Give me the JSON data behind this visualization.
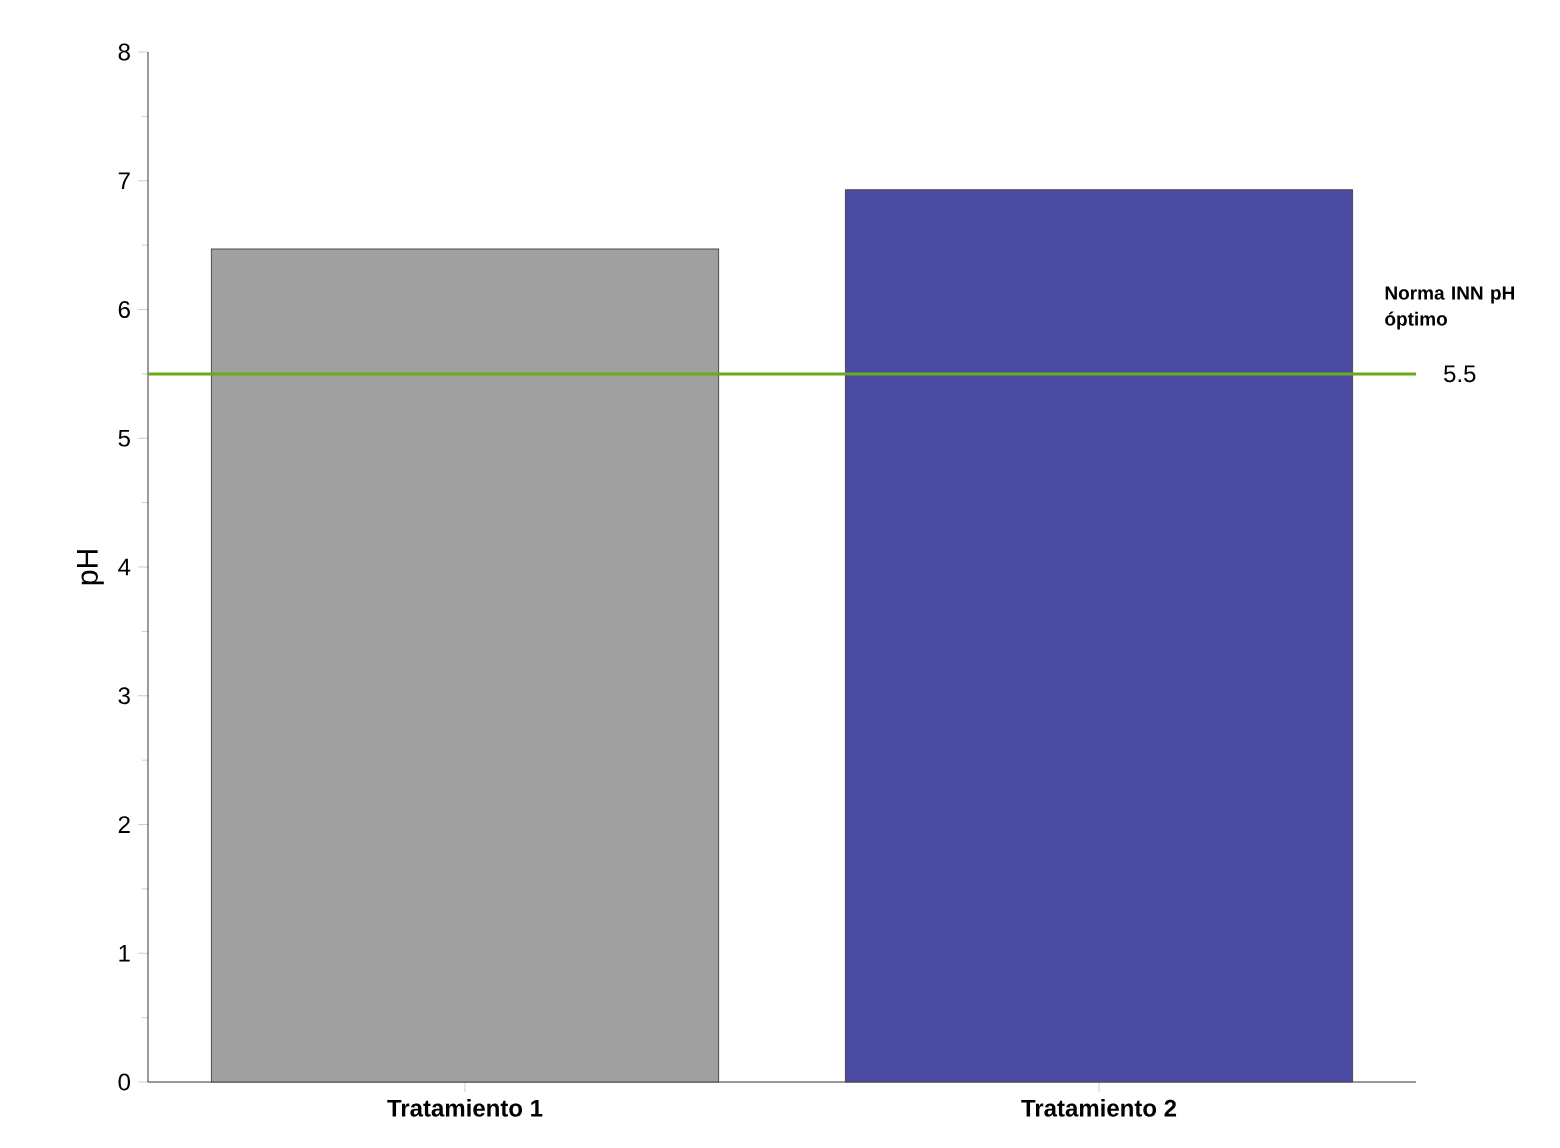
{
  "chart_data": {
    "type": "bar",
    "ylabel": "pH",
    "categories": [
      "Tratamiento 1",
      "Tratamiento 2"
    ],
    "values": [
      6.47,
      6.93
    ],
    "colors": [
      "#a0a0a0",
      "#4b4ba3"
    ],
    "ylim": [
      0,
      8
    ],
    "yticks": [
      0,
      1,
      2,
      3,
      4,
      5,
      6,
      7,
      8
    ],
    "ref_lines": [
      {
        "axis": "y",
        "value": 5.5,
        "label": "Norma INN pH óptimo",
        "color": "#6aaa1e"
      }
    ],
    "annotations": [
      "5.5"
    ]
  }
}
